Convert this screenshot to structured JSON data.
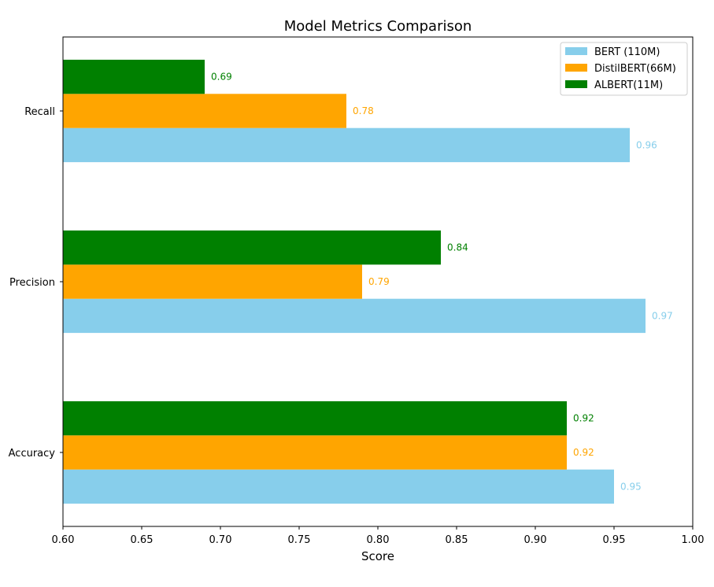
{
  "chart_data": {
    "type": "bar",
    "orientation": "horizontal",
    "title": "Model Metrics Comparison",
    "xlabel": "Score",
    "ylabel": "",
    "xlim": [
      0.6,
      1.0
    ],
    "xticks": [
      "0.60",
      "0.65",
      "0.70",
      "0.75",
      "0.80",
      "0.85",
      "0.90",
      "0.95",
      "1.00"
    ],
    "categories": [
      "Accuracy",
      "Precision",
      "Recall"
    ],
    "series": [
      {
        "name": "BERT (110M)",
        "color": "#87ceeb",
        "values": [
          0.95,
          0.97,
          0.96
        ],
        "labels": [
          "0.95",
          "0.97",
          "0.96"
        ]
      },
      {
        "name": "DistilBERT(66M)",
        "color": "#ffa500",
        "values": [
          0.92,
          0.79,
          0.78
        ],
        "labels": [
          "0.92",
          "0.79",
          "0.78"
        ]
      },
      {
        "name": "ALBERT(11M)",
        "color": "#008000",
        "values": [
          0.92,
          0.84,
          0.69
        ],
        "labels": [
          "0.92",
          "0.84",
          "0.69"
        ]
      }
    ],
    "legend_position": "top-right",
    "grid": false
  }
}
